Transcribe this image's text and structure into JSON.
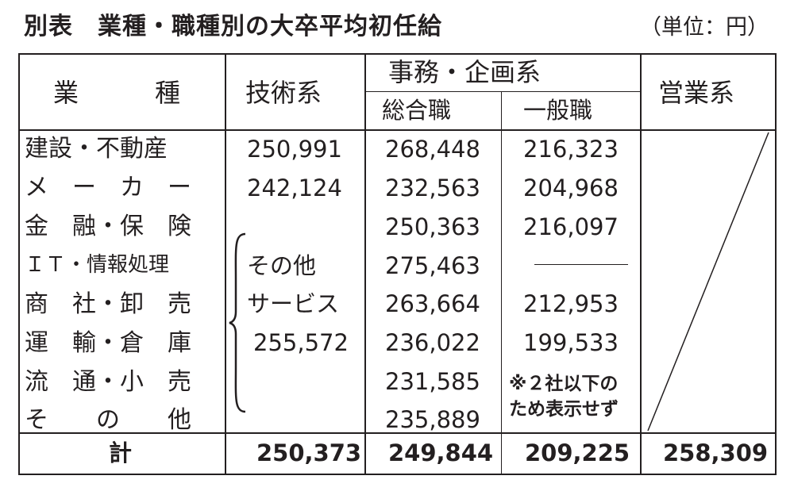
{
  "title": "別表　業種・職種別の大卒平均初任給",
  "unit": "（単位：円）",
  "headers": {
    "industry": "業　　　種",
    "tech": "技術系",
    "office": "事務・企画系",
    "sogo": "総合職",
    "ippan": "一般職",
    "sales": "営業系"
  },
  "rows": [
    {
      "industry": "建設・不動産",
      "tech": "250,991",
      "sogo": "268,448",
      "ippan": "216,323"
    },
    {
      "industry": "メ　ー　カ　ー",
      "tech": "242,124",
      "sogo": "232,563",
      "ippan": "204,968"
    },
    {
      "industry": "金　融・保　険",
      "tech": "",
      "sogo": "250,363",
      "ippan": "216,097"
    },
    {
      "industry": "ＩＴ・情報処理",
      "tech": "",
      "sogo": "275,463",
      "ippan": ""
    },
    {
      "industry": "商　社・卸　売",
      "tech": "",
      "sogo": "263,664",
      "ippan": "212,953"
    },
    {
      "industry": "運　輸・倉　庫",
      "tech": "",
      "sogo": "236,022",
      "ippan": "199,533"
    },
    {
      "industry": "流　通・小　売",
      "tech": "",
      "sogo": "231,585",
      "ippan": ""
    },
    {
      "industry": "そ　　の　　他",
      "tech": "",
      "sogo": "235,889",
      "ippan": ""
    }
  ],
  "tech_other": {
    "line1": "その他",
    "line2": "サービス",
    "value": "255,572"
  },
  "note": {
    "line1": "※２社以下の",
    "line2": "ため表示せず"
  },
  "total": {
    "label": "計",
    "tech": "250,373",
    "sogo": "249,844",
    "ippan": "209,225",
    "sales": "258,309"
  }
}
